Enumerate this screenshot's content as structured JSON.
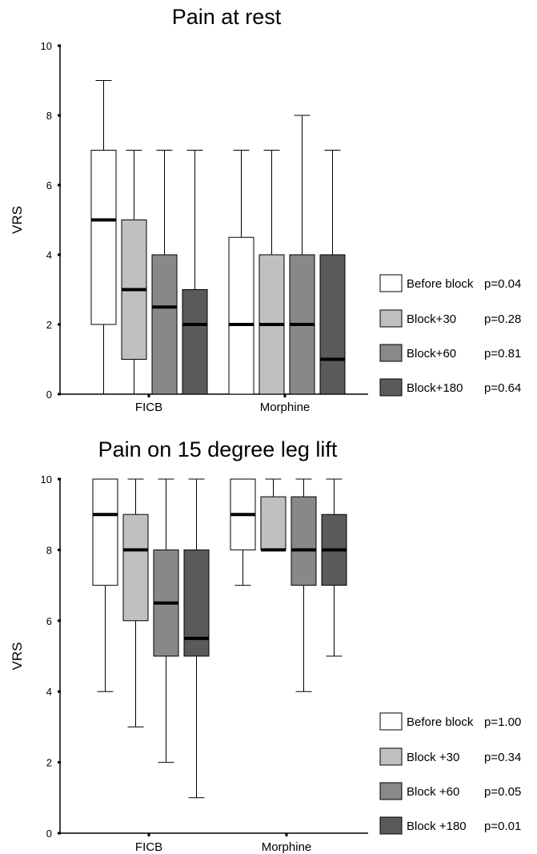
{
  "chart_data": [
    {
      "type": "boxplot",
      "title": "Pain at rest",
      "ylabel": "VRS",
      "ylim": [
        0,
        10
      ],
      "yticks": [
        "0",
        "2",
        "4",
        "6",
        "8",
        "10"
      ],
      "categories": [
        "FICB",
        "Morphine"
      ],
      "colors": [
        "#ffffff",
        "#c0c0c0",
        "#888888",
        "#5a5a5a"
      ],
      "series": [
        {
          "name": "Before block",
          "p": "p=0.04",
          "boxes": [
            {
              "min": 0,
              "q1": 2,
              "median": 5,
              "q3": 7,
              "max": 9
            },
            {
              "min": 0,
              "q1": 0,
              "median": 2,
              "q3": 4.5,
              "max": 7
            }
          ]
        },
        {
          "name": "Block+30",
          "p": "p=0.28",
          "boxes": [
            {
              "min": 0,
              "q1": 1,
              "median": 3,
              "q3": 5,
              "max": 7
            },
            {
              "min": 0,
              "q1": 0,
              "median": 2,
              "q3": 4,
              "max": 7
            }
          ]
        },
        {
          "name": "Block+60",
          "p": "p=0.81",
          "boxes": [
            {
              "min": 0,
              "q1": 0,
              "median": 2.5,
              "q3": 4,
              "max": 7
            },
            {
              "min": 0,
              "q1": 0,
              "median": 2,
              "q3": 4,
              "max": 8
            }
          ]
        },
        {
          "name": "Block+180",
          "p": "p=0.64",
          "boxes": [
            {
              "min": 0,
              "q1": 0,
              "median": 2,
              "q3": 3,
              "max": 7
            },
            {
              "min": 0,
              "q1": 0,
              "median": 1,
              "q3": 4,
              "max": 7
            }
          ]
        }
      ]
    },
    {
      "type": "boxplot",
      "title": "Pain on 15 degree leg lift",
      "ylabel": "VRS",
      "ylim": [
        0,
        10
      ],
      "yticks": [
        "0",
        "2",
        "4",
        "6",
        "8",
        "10"
      ],
      "categories": [
        "FICB",
        "Morphine"
      ],
      "colors": [
        "#ffffff",
        "#c0c0c0",
        "#888888",
        "#5a5a5a"
      ],
      "series": [
        {
          "name": "Before block",
          "p": "p=1.00",
          "boxes": [
            {
              "min": 4,
              "q1": 7,
              "median": 9,
              "q3": 10,
              "max": 10
            },
            {
              "min": 7,
              "q1": 8,
              "median": 9,
              "q3": 10,
              "max": 10
            }
          ]
        },
        {
          "name": "Block +30",
          "p": "p=0.34",
          "boxes": [
            {
              "min": 3,
              "q1": 6,
              "median": 8,
              "q3": 9,
              "max": 10
            },
            {
              "min": 8,
              "q1": 8,
              "median": 8,
              "q3": 9.5,
              "max": 10
            }
          ]
        },
        {
          "name": "Block +60",
          "p": "p=0.05",
          "boxes": [
            {
              "min": 2,
              "q1": 5,
              "median": 6.5,
              "q3": 8,
              "max": 10
            },
            {
              "min": 4,
              "q1": 7,
              "median": 8,
              "q3": 9.5,
              "max": 10
            }
          ]
        },
        {
          "name": "Block +180",
          "p": "p=0.01",
          "boxes": [
            {
              "min": 1,
              "q1": 5,
              "median": 5.5,
              "q3": 8,
              "max": 10
            },
            {
              "min": 5,
              "q1": 7,
              "median": 8,
              "q3": 9,
              "max": 10
            }
          ]
        }
      ]
    }
  ]
}
